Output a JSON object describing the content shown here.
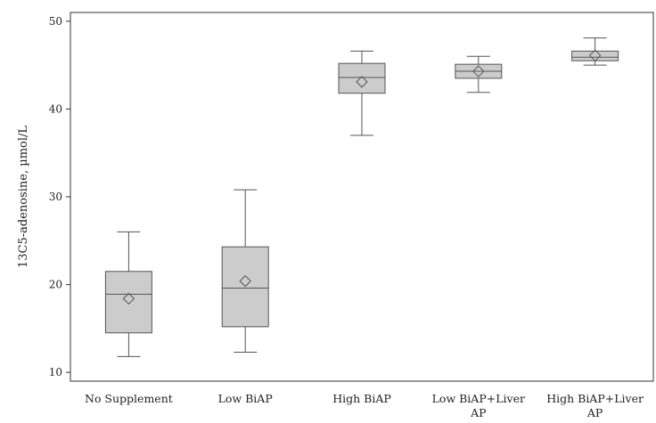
{
  "chart_data": {
    "type": "box",
    "ylabel": "13C5-adenosine, µmol/L",
    "xlabel": "",
    "ylim": [
      9,
      51
    ],
    "yticks": [
      10,
      20,
      30,
      40,
      50
    ],
    "grid": false,
    "legend": "none",
    "colors": {
      "box_fill": "#cccccc",
      "stroke": "#555555",
      "axis": "#333333"
    },
    "categories": [
      {
        "label_lines": [
          "No Supplement"
        ],
        "min": 11.8,
        "q1": 14.5,
        "median": 18.9,
        "q3": 21.5,
        "max": 26.0,
        "mean": 18.4
      },
      {
        "label_lines": [
          "Low BiAP"
        ],
        "min": 12.3,
        "q1": 15.2,
        "median": 19.6,
        "q3": 24.3,
        "max": 30.8,
        "mean": 20.4
      },
      {
        "label_lines": [
          "High BiAP"
        ],
        "min": 37.0,
        "q1": 41.8,
        "median": 43.6,
        "q3": 45.2,
        "max": 46.6,
        "mean": 43.1
      },
      {
        "label_lines": [
          "Low BiAP+Liver",
          "AP"
        ],
        "min": 41.9,
        "q1": 43.5,
        "median": 44.3,
        "q3": 45.1,
        "max": 46.0,
        "mean": 44.3
      },
      {
        "label_lines": [
          "High BiAP+Liver",
          "AP"
        ],
        "min": 45.0,
        "q1": 45.5,
        "median": 45.9,
        "q3": 46.6,
        "max": 48.1,
        "mean": 46.1
      }
    ]
  }
}
